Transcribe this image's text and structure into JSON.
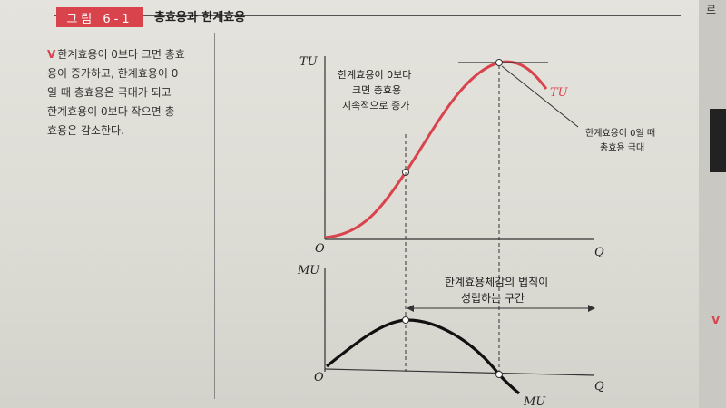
{
  "figure": {
    "label": "그림 6-1",
    "title": "총효용과 한계효용"
  },
  "side_note": {
    "mark": "V",
    "lines": [
      "한계효용이 0보다 크면 총효",
      "용이 증가하고, 한계효용이 0",
      "일 때 총효용은 극대가 되고",
      "한계효용이 0보다 작으면 총",
      "효용은 감소한다."
    ]
  },
  "edge": {
    "text": "로",
    "mark": "V"
  },
  "colors": {
    "tu_curve": "#d9434c",
    "mu_curve": "#111111",
    "label_bg": "#d9434c"
  },
  "chart_data": [
    {
      "type": "line",
      "ylabel": "TU",
      "xlabel": "Q",
      "origin_label": "O",
      "series": [
        {
          "name": "TU",
          "shape": "s-curve rising to a maximum then falling"
        }
      ],
      "annotations": [
        {
          "lines": [
            "한계효용이 0보다",
            "크면 총효용",
            "지속적으로 증가"
          ]
        },
        {
          "lines": [
            "한계효용이 0일 때",
            "총효용 극대"
          ]
        }
      ]
    },
    {
      "type": "line",
      "ylabel": "MU",
      "xlabel": "Q",
      "origin_label": "O",
      "series": [
        {
          "name": "MU",
          "shape": "hump: rises to a peak then falls below zero"
        }
      ],
      "annotations": [
        {
          "lines": [
            "한계효용체감의 법칙이",
            "성립하는 구간"
          ]
        }
      ]
    }
  ]
}
